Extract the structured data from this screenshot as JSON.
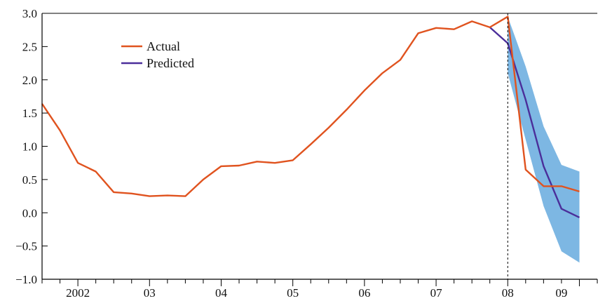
{
  "chart_data": {
    "type": "line",
    "title": "",
    "xlabel": "",
    "ylabel": "",
    "ylim": [
      -1.0,
      3.0
    ],
    "xlim": [
      2001.5,
      2009.25
    ],
    "yticks": [
      -1.0,
      -0.5,
      0.0,
      0.5,
      1.0,
      1.5,
      2.0,
      2.5,
      3.0
    ],
    "ytick_labels": [
      "−1.0",
      "−0.5",
      "0.0",
      "0.5",
      "1.0",
      "1.5",
      "2.0",
      "2.5",
      "3.0"
    ],
    "xtick_labels": [
      {
        "x": 2002.0,
        "label": "2002"
      },
      {
        "x": 2003.0,
        "label": "03"
      },
      {
        "x": 2004.0,
        "label": "04"
      },
      {
        "x": 2005.0,
        "label": "05"
      },
      {
        "x": 2006.0,
        "label": "06"
      },
      {
        "x": 2007.0,
        "label": "07"
      },
      {
        "x": 2008.0,
        "label": "08"
      },
      {
        "x": 2008.75,
        "label": "09"
      }
    ],
    "legend_position": "top-left",
    "grid": false,
    "forecast_start": 2008.0,
    "series": [
      {
        "name": "Actual",
        "color": "#e0531f",
        "points": [
          [
            2001.5,
            1.64
          ],
          [
            2001.75,
            1.24
          ],
          [
            2002.0,
            0.75
          ],
          [
            2002.25,
            0.62
          ],
          [
            2002.5,
            0.31
          ],
          [
            2002.75,
            0.29
          ],
          [
            2003.0,
            0.25
          ],
          [
            2003.25,
            0.26
          ],
          [
            2003.5,
            0.25
          ],
          [
            2003.75,
            0.5
          ],
          [
            2004.0,
            0.7
          ],
          [
            2004.25,
            0.71
          ],
          [
            2004.5,
            0.77
          ],
          [
            2004.75,
            0.75
          ],
          [
            2005.0,
            0.79
          ],
          [
            2005.25,
            1.03
          ],
          [
            2005.5,
            1.28
          ],
          [
            2005.75,
            1.55
          ],
          [
            2006.0,
            1.84
          ],
          [
            2006.25,
            2.1
          ],
          [
            2006.5,
            2.3
          ],
          [
            2006.75,
            2.7
          ],
          [
            2007.0,
            2.78
          ],
          [
            2007.25,
            2.76
          ],
          [
            2007.5,
            2.88
          ],
          [
            2007.75,
            2.79
          ],
          [
            2008.0,
            2.95
          ],
          [
            2008.25,
            0.65
          ],
          [
            2008.5,
            0.4
          ],
          [
            2008.75,
            0.4
          ],
          [
            2009.0,
            0.32
          ]
        ]
      },
      {
        "name": "Predicted",
        "color": "#4b2e9a",
        "points": [
          [
            2007.75,
            2.79
          ],
          [
            2008.0,
            2.55
          ],
          [
            2008.25,
            1.7
          ],
          [
            2008.5,
            0.7
          ],
          [
            2008.75,
            0.06
          ],
          [
            2009.0,
            -0.07
          ]
        ]
      }
    ],
    "band": {
      "color": "#7db7e3",
      "upper": [
        [
          2008.0,
          2.95
        ],
        [
          2008.25,
          2.2
        ],
        [
          2008.5,
          1.3
        ],
        [
          2008.75,
          0.72
        ],
        [
          2009.0,
          0.62
        ]
      ],
      "lower": [
        [
          2008.0,
          2.1
        ],
        [
          2008.25,
          1.1
        ],
        [
          2008.5,
          0.1
        ],
        [
          2008.75,
          -0.58
        ],
        [
          2009.0,
          -0.75
        ]
      ]
    }
  }
}
